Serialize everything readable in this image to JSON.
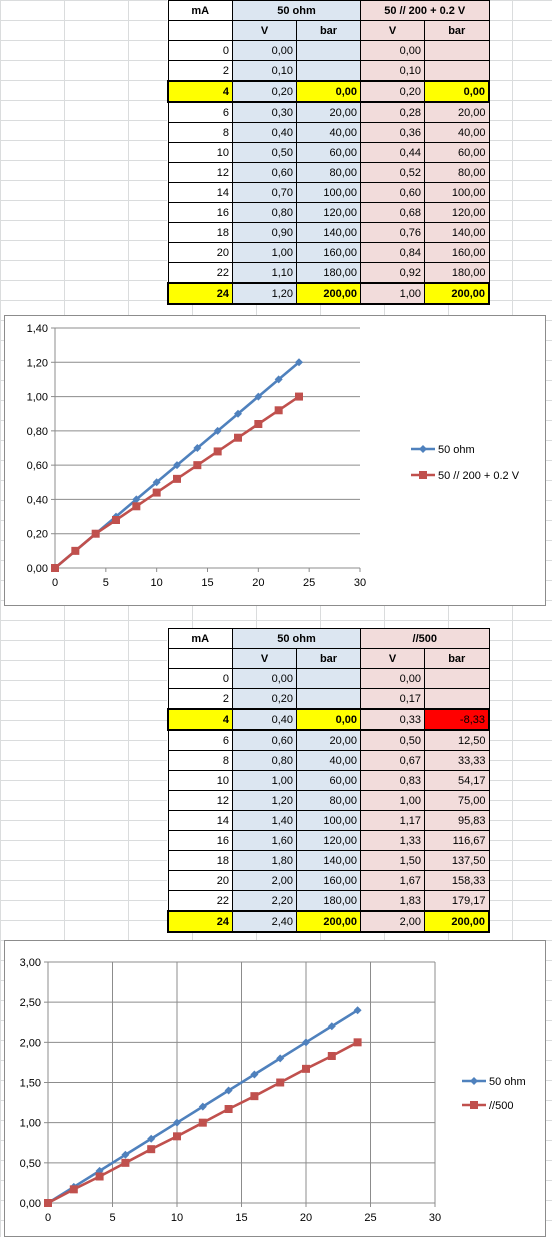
{
  "table1": {
    "headers": {
      "ma": "mA",
      "group1": "50 ohm",
      "group2": "50 // 200 + 0.2 V"
    },
    "subheaders": {
      "v1": "V",
      "b1": "bar",
      "v2": "V",
      "b2": "bar"
    },
    "rows": [
      {
        "ma": "0",
        "v1": "0,00",
        "b1": "",
        "v2": "0,00",
        "b2": ""
      },
      {
        "ma": "2",
        "v1": "0,10",
        "b1": "",
        "v2": "0,10",
        "b2": ""
      },
      {
        "ma": "4",
        "v1": "0,20",
        "b1": "0,00",
        "v2": "0,20",
        "b2": "0,00"
      },
      {
        "ma": "6",
        "v1": "0,30",
        "b1": "20,00",
        "v2": "0,28",
        "b2": "20,00"
      },
      {
        "ma": "8",
        "v1": "0,40",
        "b1": "40,00",
        "v2": "0,36",
        "b2": "40,00"
      },
      {
        "ma": "10",
        "v1": "0,50",
        "b1": "60,00",
        "v2": "0,44",
        "b2": "60,00"
      },
      {
        "ma": "12",
        "v1": "0,60",
        "b1": "80,00",
        "v2": "0,52",
        "b2": "80,00"
      },
      {
        "ma": "14",
        "v1": "0,70",
        "b1": "100,00",
        "v2": "0,60",
        "b2": "100,00"
      },
      {
        "ma": "16",
        "v1": "0,80",
        "b1": "120,00",
        "v2": "0,68",
        "b2": "120,00"
      },
      {
        "ma": "18",
        "v1": "0,90",
        "b1": "140,00",
        "v2": "0,76",
        "b2": "140,00"
      },
      {
        "ma": "20",
        "v1": "1,00",
        "b1": "160,00",
        "v2": "0,84",
        "b2": "160,00"
      },
      {
        "ma": "22",
        "v1": "1,10",
        "b1": "180,00",
        "v2": "0,92",
        "b2": "180,00"
      },
      {
        "ma": "24",
        "v1": "1,20",
        "b1": "200,00",
        "v2": "1,00",
        "b2": "200,00"
      }
    ],
    "highlight_rows": [
      2,
      12
    ],
    "negative_cell_rows": []
  },
  "table2": {
    "headers": {
      "ma": "mA",
      "group1": "50 ohm",
      "group2": "//500"
    },
    "subheaders": {
      "v1": "V",
      "b1": "bar",
      "v2": "V",
      "b2": "bar"
    },
    "rows": [
      {
        "ma": "0",
        "v1": "0,00",
        "b1": "",
        "v2": "0,00",
        "b2": ""
      },
      {
        "ma": "2",
        "v1": "0,20",
        "b1": "",
        "v2": "0,17",
        "b2": ""
      },
      {
        "ma": "4",
        "v1": "0,40",
        "b1": "0,00",
        "v2": "0,33",
        "b2": "-8,33"
      },
      {
        "ma": "6",
        "v1": "0,60",
        "b1": "20,00",
        "v2": "0,50",
        "b2": "12,50"
      },
      {
        "ma": "8",
        "v1": "0,80",
        "b1": "40,00",
        "v2": "0,67",
        "b2": "33,33"
      },
      {
        "ma": "10",
        "v1": "1,00",
        "b1": "60,00",
        "v2": "0,83",
        "b2": "54,17"
      },
      {
        "ma": "12",
        "v1": "1,20",
        "b1": "80,00",
        "v2": "1,00",
        "b2": "75,00"
      },
      {
        "ma": "14",
        "v1": "1,40",
        "b1": "100,00",
        "v2": "1,17",
        "b2": "95,83"
      },
      {
        "ma": "16",
        "v1": "1,60",
        "b1": "120,00",
        "v2": "1,33",
        "b2": "116,67"
      },
      {
        "ma": "18",
        "v1": "1,80",
        "b1": "140,00",
        "v2": "1,50",
        "b2": "137,50"
      },
      {
        "ma": "20",
        "v1": "2,00",
        "b1": "160,00",
        "v2": "1,67",
        "b2": "158,33"
      },
      {
        "ma": "22",
        "v1": "2,20",
        "b1": "180,00",
        "v2": "1,83",
        "b2": "179,17"
      },
      {
        "ma": "24",
        "v1": "2,40",
        "b1": "200,00",
        "v2": "2,00",
        "b2": "200,00"
      }
    ],
    "highlight_rows": [
      2,
      12
    ],
    "negative_cell_rows": [
      2
    ]
  },
  "colors": {
    "blue_fill": "#dce6f1",
    "pink_fill": "#f2dcdb",
    "highlight": "#ffff00",
    "negative": "#ff0000",
    "series1": "#4f81bd",
    "series2": "#c0504d"
  },
  "chart_data": [
    {
      "type": "line",
      "title": "",
      "xlabel": "",
      "ylabel": "",
      "xlim": [
        0,
        30
      ],
      "ylim": [
        0,
        1.4
      ],
      "xticks": [
        0,
        5,
        10,
        15,
        20,
        25,
        30
      ],
      "xtick_labels": [
        "0",
        "5",
        "10",
        "15",
        "20",
        "25",
        "30"
      ],
      "yticks": [
        0,
        0.2,
        0.4,
        0.6,
        0.8,
        1.0,
        1.2,
        1.4
      ],
      "ytick_labels": [
        "0,00",
        "0,20",
        "0,40",
        "0,60",
        "0,80",
        "1,00",
        "1,20",
        "1,40"
      ],
      "grid": "horizontal",
      "legend": "right",
      "series": [
        {
          "name": "50 ohm",
          "marker": "diamond",
          "color": "#4f81bd",
          "x": [
            0,
            2,
            4,
            6,
            8,
            10,
            12,
            14,
            16,
            18,
            20,
            22,
            24
          ],
          "y": [
            0,
            0.1,
            0.2,
            0.3,
            0.4,
            0.5,
            0.6,
            0.7,
            0.8,
            0.9,
            1.0,
            1.1,
            1.2
          ]
        },
        {
          "name": "50 // 200 + 0.2 V",
          "marker": "square",
          "color": "#c0504d",
          "x": [
            0,
            2,
            4,
            6,
            8,
            10,
            12,
            14,
            16,
            18,
            20,
            22,
            24
          ],
          "y": [
            0,
            0.1,
            0.2,
            0.28,
            0.36,
            0.44,
            0.52,
            0.6,
            0.68,
            0.76,
            0.84,
            0.92,
            1.0
          ]
        }
      ]
    },
    {
      "type": "line",
      "title": "",
      "xlabel": "",
      "ylabel": "",
      "xlim": [
        0,
        30
      ],
      "ylim": [
        0,
        3.0
      ],
      "xticks": [
        0,
        5,
        10,
        15,
        20,
        25,
        30
      ],
      "xtick_labels": [
        "0",
        "5",
        "10",
        "15",
        "20",
        "25",
        "30"
      ],
      "yticks": [
        0,
        0.5,
        1.0,
        1.5,
        2.0,
        2.5,
        3.0
      ],
      "ytick_labels": [
        "0,00",
        "0,50",
        "1,00",
        "1,50",
        "2,00",
        "2,50",
        "3,00"
      ],
      "grid": "both",
      "legend": "right",
      "series": [
        {
          "name": "50 ohm",
          "marker": "diamond",
          "color": "#4f81bd",
          "x": [
            0,
            2,
            4,
            6,
            8,
            10,
            12,
            14,
            16,
            18,
            20,
            22,
            24
          ],
          "y": [
            0,
            0.2,
            0.4,
            0.6,
            0.8,
            1.0,
            1.2,
            1.4,
            1.6,
            1.8,
            2.0,
            2.2,
            2.4
          ]
        },
        {
          "name": "//500",
          "marker": "square",
          "color": "#c0504d",
          "x": [
            0,
            2,
            4,
            6,
            8,
            10,
            12,
            14,
            16,
            18,
            20,
            22,
            24
          ],
          "y": [
            0,
            0.17,
            0.33,
            0.5,
            0.67,
            0.83,
            1.0,
            1.17,
            1.33,
            1.5,
            1.67,
            1.83,
            2.0
          ]
        }
      ]
    }
  ]
}
